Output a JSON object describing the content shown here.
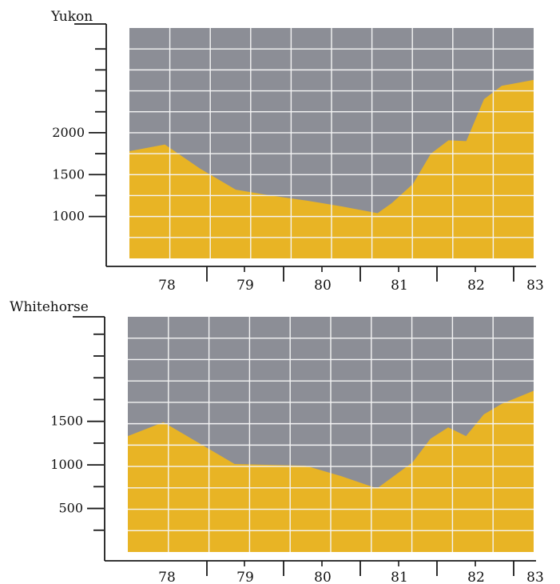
{
  "chart_data": [
    {
      "type": "area",
      "title": "Yukon",
      "x_tick_labels": [
        "78",
        "79",
        "80",
        "81",
        "82",
        "83"
      ],
      "y_tick_labels": [
        "1000",
        "1500",
        "2000"
      ],
      "xlim": [
        77.5,
        83.2
      ],
      "ylim": [
        500,
        3250
      ],
      "grid": true,
      "colors": {
        "fill": "#e8b425",
        "background": "#8c8e96",
        "grid": "#f4f4f4",
        "axis": "#1a1a1a"
      },
      "x": [
        77.5,
        78.0,
        78.5,
        79.0,
        79.5,
        80.0,
        80.5,
        81.0,
        81.2,
        81.5,
        81.75,
        82.0,
        82.25,
        82.5,
        82.75,
        83.2
      ],
      "values": [
        1780,
        1860,
        1570,
        1320,
        1250,
        1190,
        1120,
        1040,
        1160,
        1390,
        1750,
        1910,
        1900,
        2400,
        2560,
        2630
      ]
    },
    {
      "type": "area",
      "title": "Whitehorse",
      "x_tick_labels": [
        "78",
        "79",
        "80",
        "81",
        "82",
        "83"
      ],
      "y_tick_labels": [
        "500",
        "1000",
        "1500"
      ],
      "xlim": [
        77.5,
        83.2
      ],
      "ylim": [
        0,
        2700
      ],
      "grid": true,
      "colors": {
        "fill": "#e8b425",
        "background": "#8c8e96",
        "grid": "#f4f4f4",
        "axis": "#1a1a1a"
      },
      "x": [
        77.5,
        78.0,
        78.5,
        79.0,
        79.5,
        80.0,
        80.5,
        81.0,
        81.2,
        81.5,
        81.75,
        82.0,
        82.25,
        82.5,
        82.75,
        83.2
      ],
      "values": [
        1330,
        1490,
        1250,
        1010,
        1000,
        990,
        870,
        730,
        850,
        1030,
        1300,
        1430,
        1330,
        1580,
        1700,
        1850
      ]
    }
  ]
}
